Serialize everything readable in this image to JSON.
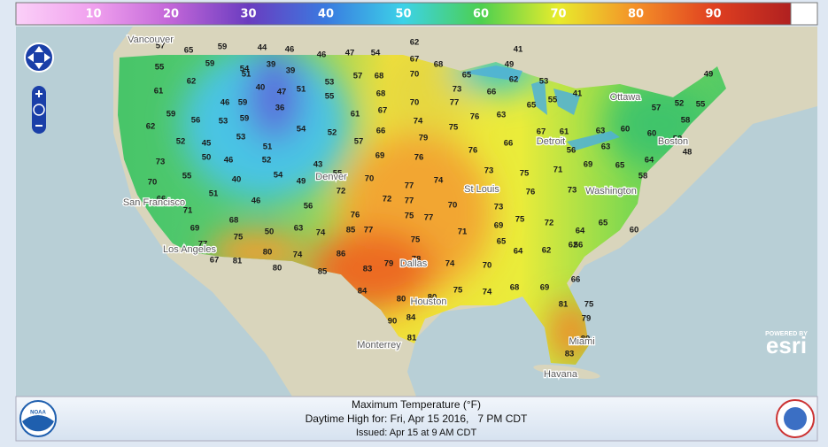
{
  "color_scale": {
    "range": [
      0,
      100
    ],
    "ticks": [
      10,
      20,
      30,
      40,
      50,
      60,
      70,
      80,
      90
    ]
  },
  "map": {
    "cities": [
      "Vancouver",
      "Ottawa",
      "San Francisco",
      "Los Angeles",
      "Denver",
      "St Louis",
      "Washington",
      "Detroit",
      "Boston",
      "Dallas",
      "Houston",
      "Monterrey",
      "Miami",
      "Havana"
    ],
    "stations": [
      57,
      65,
      59,
      44,
      46,
      46,
      47,
      54,
      62,
      41,
      55,
      59,
      54,
      39,
      39,
      57,
      68,
      67,
      68,
      49,
      61,
      62,
      51,
      40,
      47,
      51,
      53,
      70,
      65,
      62,
      53,
      46,
      59,
      55,
      68,
      73,
      66,
      41,
      55,
      65,
      49,
      59,
      56,
      53,
      59,
      36,
      70,
      77,
      76,
      63,
      57,
      52,
      55,
      62,
      61,
      67,
      74,
      75,
      58,
      52,
      45,
      53,
      54,
      52,
      66,
      79,
      67,
      61,
      63,
      60,
      60,
      52,
      73,
      50,
      46,
      51,
      57,
      76,
      66,
      56,
      63,
      48,
      52,
      69,
      76,
      73,
      75,
      71,
      69,
      65,
      64,
      55,
      40,
      54,
      55,
      70,
      77,
      74,
      58,
      70,
      49,
      43,
      72,
      72,
      77,
      70,
      76,
      73,
      51,
      46,
      56,
      66,
      71,
      76,
      75,
      77,
      73,
      68,
      69,
      63,
      74,
      85,
      77,
      75,
      71,
      69,
      75,
      72,
      65,
      75,
      50,
      60,
      64,
      62,
      77,
      80,
      74,
      86,
      83,
      79,
      78,
      74,
      65,
      64,
      62,
      56,
      67,
      81,
      80,
      70,
      85,
      84,
      80,
      80,
      75,
      74,
      68,
      69,
      66,
      84,
      90,
      81,
      75,
      79,
      81,
      83,
      80
    ]
  },
  "branding": {
    "powered_by": "POWERED BY",
    "esri": "esri",
    "noaa": "NOAA"
  },
  "footer": {
    "title": "Maximum Temperature (°F)",
    "subtitle": "Daytime High for: Fri, Apr 15 2016,   7 PM CDT",
    "issued": "Issued: Apr 15 at 9 AM CDT"
  }
}
